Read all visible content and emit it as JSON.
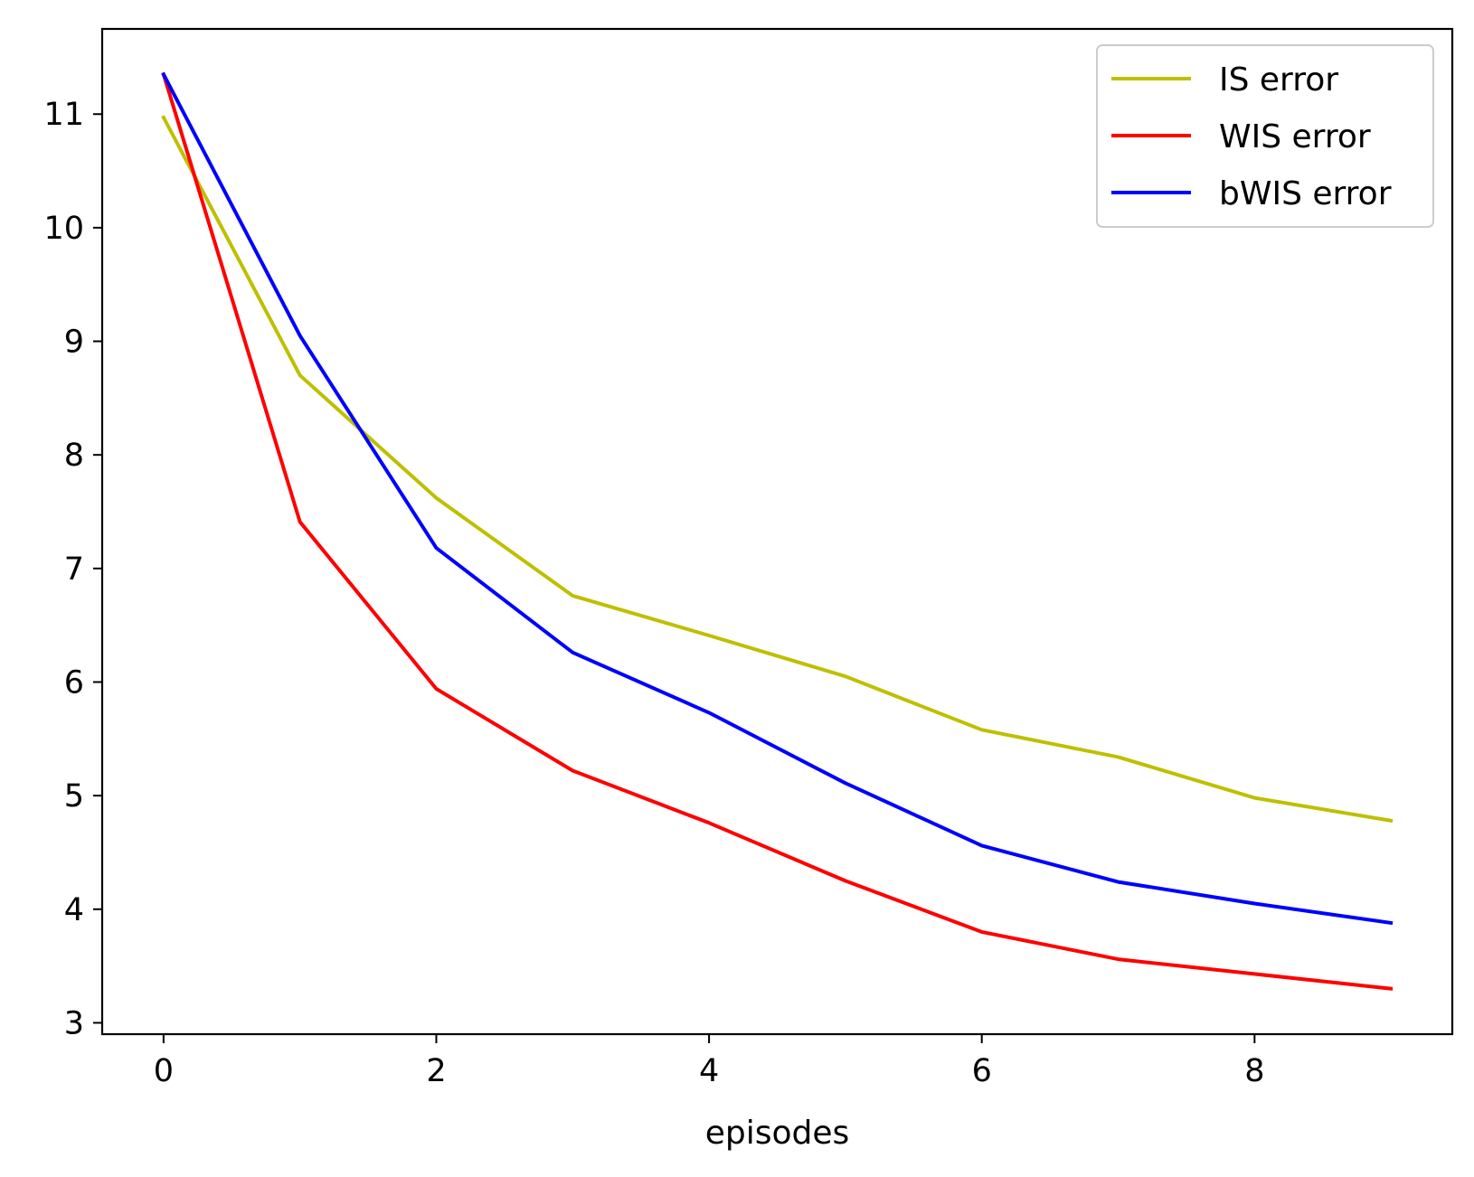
{
  "chart_data": {
    "type": "line",
    "title": "",
    "xlabel": "episodes",
    "ylabel": "",
    "x": [
      0,
      1,
      2,
      3,
      4,
      5,
      6,
      7,
      8,
      9
    ],
    "xlim": [
      -0.45,
      9.45
    ],
    "ylim": [
      2.9,
      11.75
    ],
    "xticks": [
      0,
      2,
      4,
      6,
      8
    ],
    "yticks": [
      3,
      4,
      5,
      6,
      7,
      8,
      9,
      10,
      11
    ],
    "grid": false,
    "legend_position": "upper right",
    "series": [
      {
        "name": "IS error",
        "color": "#bfbf00",
        "values": [
          10.97,
          8.7,
          7.62,
          6.76,
          6.41,
          6.05,
          5.58,
          5.34,
          4.98,
          4.78
        ]
      },
      {
        "name": "WIS error",
        "color": "#ff0000",
        "values": [
          11.35,
          7.41,
          5.94,
          5.22,
          4.76,
          4.25,
          3.8,
          3.56,
          3.43,
          3.3
        ]
      },
      {
        "name": "bWIS error",
        "color": "#0000ff",
        "values": [
          11.35,
          9.05,
          7.18,
          6.26,
          5.73,
          5.11,
          4.56,
          4.24,
          4.05,
          3.88
        ]
      }
    ]
  }
}
